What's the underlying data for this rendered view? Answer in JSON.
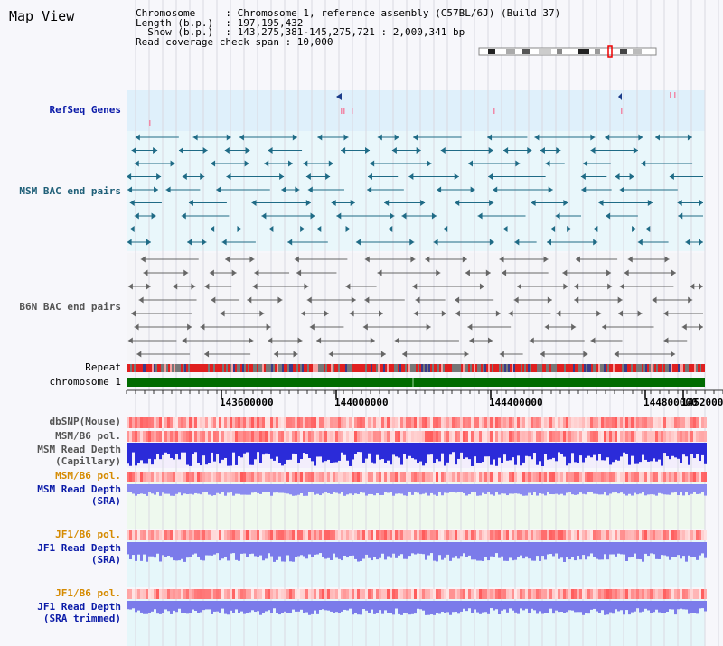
{
  "view_title": "Map View",
  "info_lines": [
    "Chromosome     : Chromosome 1, reference assembly (C57BL/6J) (Build 37)",
    "Length (b.p.)  : 197,195,432",
    "  Show (b.p.)  : 143,275,381-145,275,721 : 2,000,341 bp",
    "Read coverage check span : 10,000"
  ],
  "tracks": {
    "refseq": "RefSeq Genes",
    "msm_bac": "MSM BAC end pairs",
    "b6n_bac": "B6N BAC end pairs",
    "repeat": "Repeat",
    "chromosome": "chromosome 1",
    "dbsnp": "dbSNP(Mouse)",
    "msm_b6_pol_1": "MSM/B6 pol.",
    "msm_depth_cap_1": "MSM Read Depth",
    "msm_depth_cap_2": "(Capillary)",
    "msm_b6_pol_2": "MSM/B6 pol.",
    "msm_depth_sra_1": "MSM Read Depth",
    "msm_depth_sra_2": "(SRA)",
    "jf1_b6_pol_1": "JF1/B6 pol.",
    "jf1_depth_sra_1": "JF1 Read Depth",
    "jf1_depth_sra_2": "(SRA)",
    "jf1_b6_pol_2": "JF1/B6 pol.",
    "jf1_depth_trim_1": "JF1 Read Depth",
    "jf1_depth_trim_2": "(SRA trimmed)"
  },
  "axis_ticks": [
    "143600000",
    "144000000",
    "144400000",
    "144800000",
    "1452000"
  ],
  "colors": {
    "refseq_bg": "#dff0fb",
    "msm_bac_bg": "#e9f7fb",
    "b6n_bac_bg": "#f5f5f8",
    "chromosome_bar": "#006b00",
    "depth_capillary": "#2b2bd9",
    "depth_sra": "#8a8af0",
    "polymorphism": "#ff5a5a",
    "bac_msm_feature": "#1f6b86",
    "bac_b6n_feature": "#666666"
  }
}
